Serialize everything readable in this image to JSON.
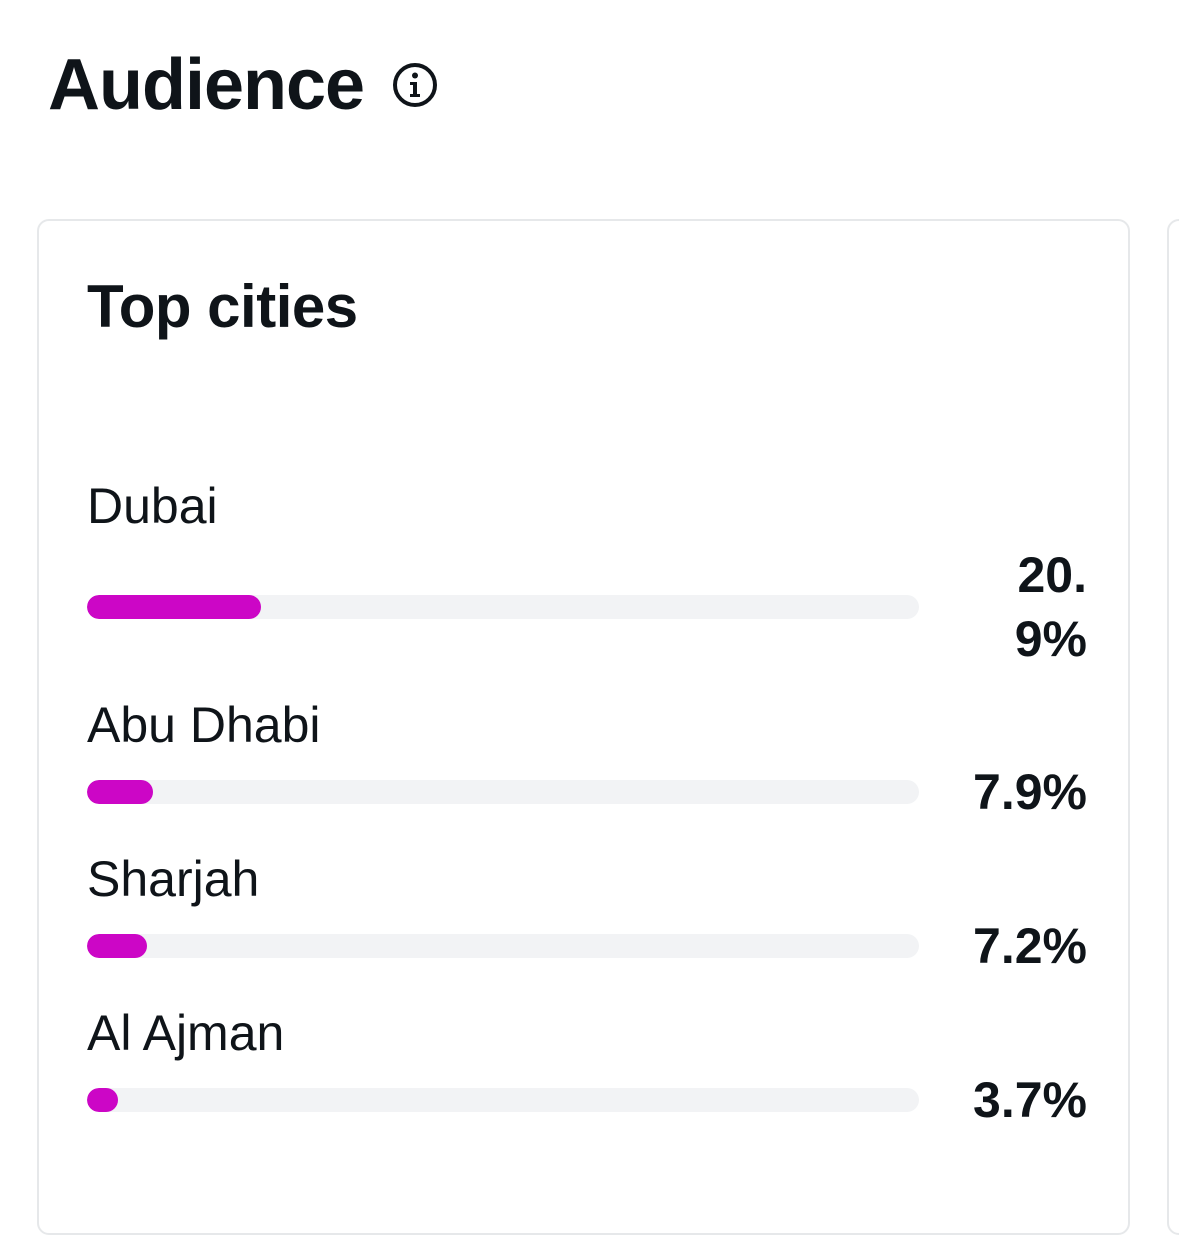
{
  "header": {
    "title": "Audience",
    "info_icon": "info-icon"
  },
  "card": {
    "title": "Top cities",
    "accent_color": "#cc06c6",
    "track_color": "#f2f3f5",
    "cities": [
      {
        "name": "Dubai",
        "percent_label": "20.9%",
        "percent": 20.9
      },
      {
        "name": "Abu Dhabi",
        "percent_label": "7.9%",
        "percent": 7.9
      },
      {
        "name": "Sharjah",
        "percent_label": "7.2%",
        "percent": 7.2
      },
      {
        "name": "Al Ajman",
        "percent_label": "3.7%",
        "percent": 3.7
      }
    ]
  }
}
